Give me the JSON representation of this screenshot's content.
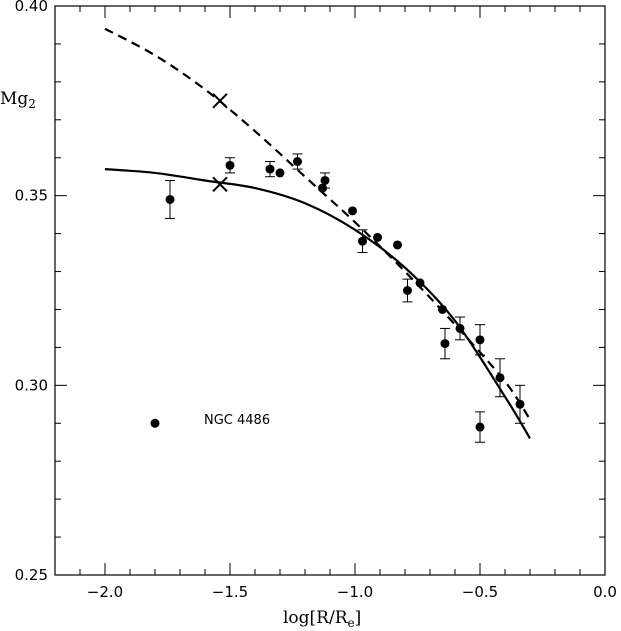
{
  "chart_data": {
    "type": "scatter",
    "xlabel": {
      "main": "log[R/R",
      "sub": "e",
      "close": "]"
    },
    "ylabel": {
      "main": "Mg",
      "sub": "2"
    },
    "xlim": [
      -2.2,
      0.0
    ],
    "ylim": [
      0.25,
      0.4
    ],
    "x_ticks": [
      {
        "value": -2.0,
        "label": "−2.0"
      },
      {
        "value": -1.5,
        "label": "−1.5"
      },
      {
        "value": -1.0,
        "label": "−1.0"
      },
      {
        "value": -0.5,
        "label": "−0.5"
      },
      {
        "value": 0.0,
        "label": "0.0"
      }
    ],
    "y_ticks": [
      {
        "value": 0.25,
        "label": "0.25"
      },
      {
        "value": 0.3,
        "label": "0.30"
      },
      {
        "value": 0.35,
        "label": "0.35"
      },
      {
        "value": 0.4,
        "label": "0.40"
      }
    ],
    "legend": {
      "label": "NGC 4486",
      "marker_x": -1.8,
      "marker_y": 0.29
    },
    "points": [
      {
        "x": -1.74,
        "y": 0.349,
        "err": 0.005
      },
      {
        "x": -1.5,
        "y": 0.358,
        "err": 0.002
      },
      {
        "x": -1.34,
        "y": 0.357,
        "err": 0.002
      },
      {
        "x": -1.3,
        "y": 0.356,
        "err": 0.0
      },
      {
        "x": -1.23,
        "y": 0.359,
        "err": 0.002
      },
      {
        "x": -1.13,
        "y": 0.352,
        "err": 0.0
      },
      {
        "x": -1.12,
        "y": 0.354,
        "err": 0.002
      },
      {
        "x": -1.01,
        "y": 0.346,
        "err": 0.0
      },
      {
        "x": -0.97,
        "y": 0.338,
        "err": 0.003
      },
      {
        "x": -0.91,
        "y": 0.339,
        "err": 0.0
      },
      {
        "x": -0.83,
        "y": 0.337,
        "err": 0.0
      },
      {
        "x": -0.79,
        "y": 0.325,
        "err": 0.003
      },
      {
        "x": -0.74,
        "y": 0.327,
        "err": 0.0
      },
      {
        "x": -0.65,
        "y": 0.32,
        "err": 0.0
      },
      {
        "x": -0.64,
        "y": 0.311,
        "err": 0.004
      },
      {
        "x": -0.58,
        "y": 0.315,
        "err": 0.003
      },
      {
        "x": -0.5,
        "y": 0.312,
        "err": 0.004
      },
      {
        "x": -0.5,
        "y": 0.289,
        "err": 0.004
      },
      {
        "x": -0.42,
        "y": 0.302,
        "err": 0.005
      },
      {
        "x": -0.34,
        "y": 0.295,
        "err": 0.005
      }
    ],
    "crosses": [
      {
        "x": -1.54,
        "y": 0.375
      },
      {
        "x": -1.54,
        "y": 0.353
      }
    ],
    "curves": [
      {
        "style": "dashed",
        "x": [
          -2.0,
          -1.8,
          -1.6,
          -1.4,
          -1.2,
          -1.0,
          -0.8,
          -0.6,
          -0.4,
          -0.3
        ],
        "y": [
          0.394,
          0.387,
          0.378,
          0.367,
          0.355,
          0.343,
          0.33,
          0.316,
          0.301,
          0.291
        ]
      },
      {
        "style": "solid",
        "x": [
          -2.0,
          -1.8,
          -1.6,
          -1.4,
          -1.2,
          -1.0,
          -0.8,
          -0.6,
          -0.4,
          -0.3
        ],
        "y": [
          0.357,
          0.356,
          0.354,
          0.352,
          0.348,
          0.341,
          0.331,
          0.317,
          0.297,
          0.286
        ]
      }
    ]
  }
}
